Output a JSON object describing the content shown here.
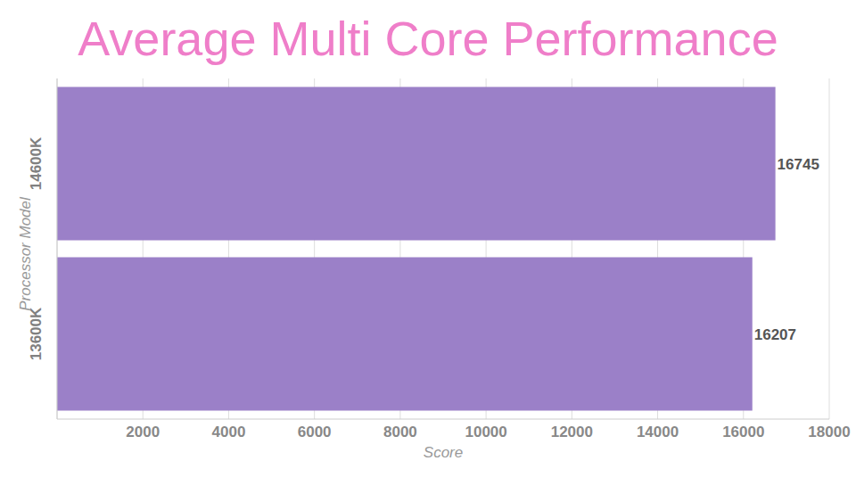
{
  "chart_data": {
    "type": "bar",
    "title": "Average Multi Core Performance",
    "x_label": "Score",
    "y_label": "Processor Model",
    "categories": [
      "14600K",
      "13600K"
    ],
    "values": [
      16745,
      16207
    ],
    "color": "#9b80c8",
    "orientation": "horizontal",
    "xlim": [
      0,
      18000
    ],
    "xticks": [
      2000,
      4000,
      6000,
      8000,
      10000,
      12000,
      14000,
      16000,
      18000
    ],
    "grid": true,
    "data_labels": true
  }
}
